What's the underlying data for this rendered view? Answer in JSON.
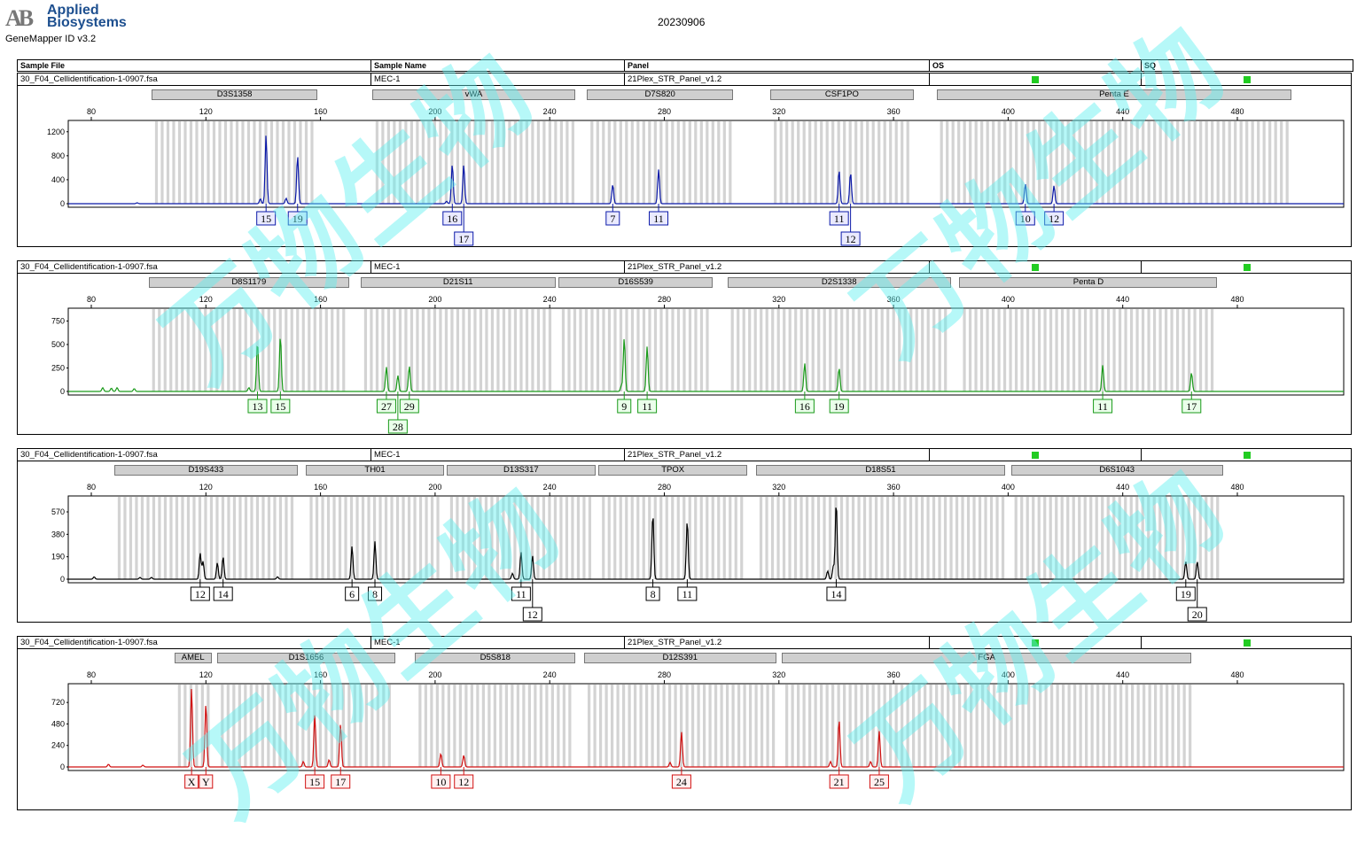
{
  "app": {
    "logo_mark": "AB",
    "company_line1": "Applied",
    "company_line2": "Biosystems",
    "version": "GeneMapper ID v3.2"
  },
  "run_date": "20230906",
  "table_header": {
    "sample_file": "Sample File",
    "sample_name": "Sample Name",
    "panel": "Panel",
    "os": "OS",
    "sq": "SQ"
  },
  "x_ticks": [
    80,
    120,
    160,
    200,
    240,
    280,
    320,
    360,
    400,
    440,
    480
  ],
  "colors": {
    "blue": "#0b19a8",
    "green": "#1a9a1a",
    "black": "#000000",
    "red": "#d11010",
    "status": "#22cc22"
  },
  "watermark": "万物生物",
  "panels": [
    {
      "sample_file": "30_F04_Cellidentification-1-0907.fsa",
      "sample_name": "MEC-1",
      "panel": "21Plex_STR_Panel_v1.2",
      "color": "#0b19a8",
      "label_fill": "#eaeaff",
      "y_ticks": [
        0,
        400,
        800,
        1200
      ],
      "ymax": 1300,
      "loci": [
        {
          "name": "D3S1358",
          "start": 101,
          "end": 159
        },
        {
          "name": "vWA",
          "start": 178,
          "end": 249
        },
        {
          "name": "D7S820",
          "start": 253,
          "end": 304
        },
        {
          "name": "CSF1PO",
          "start": 317,
          "end": 367
        },
        {
          "name": "Penta E",
          "start": 375,
          "end": 499
        }
      ],
      "peaks": [
        {
          "x": 141,
          "h": 1150,
          "allele": "15",
          "row": 0
        },
        {
          "x": 152,
          "h": 800,
          "allele": "19",
          "row": 0
        },
        {
          "x": 206,
          "h": 660,
          "allele": "16",
          "row": 0
        },
        {
          "x": 210,
          "h": 650,
          "allele": "17",
          "row": 1
        },
        {
          "x": 262,
          "h": 320,
          "allele": "7",
          "row": 0
        },
        {
          "x": 278,
          "h": 570,
          "allele": "11",
          "row": 0
        },
        {
          "x": 341,
          "h": 560,
          "allele": "11",
          "row": 0
        },
        {
          "x": 345,
          "h": 520,
          "allele": "12",
          "row": 1
        },
        {
          "x": 406,
          "h": 330,
          "allele": "10",
          "row": 0
        },
        {
          "x": 416,
          "h": 300,
          "allele": "12",
          "row": 0
        }
      ],
      "minor": [
        {
          "x": 139,
          "h": 80
        },
        {
          "x": 148,
          "h": 90
        },
        {
          "x": 204,
          "h": 40
        },
        {
          "x": 96,
          "h": 15
        }
      ]
    },
    {
      "sample_file": "30_F04_Cellidentification-1-0907.fsa",
      "sample_name": "MEC-1",
      "panel": "21Plex_STR_Panel_v1.2",
      "color": "#1a9a1a",
      "label_fill": "#eaffea",
      "y_ticks": [
        0,
        250,
        500,
        750
      ],
      "ymax": 830,
      "loci": [
        {
          "name": "D8S1179",
          "start": 100,
          "end": 170
        },
        {
          "name": "D21S11",
          "start": 174,
          "end": 242
        },
        {
          "name": "D16S539",
          "start": 243,
          "end": 297
        },
        {
          "name": "D2S1338",
          "start": 302,
          "end": 380
        },
        {
          "name": "Penta D",
          "start": 383,
          "end": 473
        }
      ],
      "peaks": [
        {
          "x": 138,
          "h": 530,
          "allele": "13",
          "row": 0
        },
        {
          "x": 146,
          "h": 590,
          "allele": "15",
          "row": 0
        },
        {
          "x": 183,
          "h": 260,
          "allele": "27",
          "row": 0
        },
        {
          "x": 187,
          "h": 170,
          "allele": "28",
          "row": 1
        },
        {
          "x": 191,
          "h": 270,
          "allele": "29",
          "row": 0
        },
        {
          "x": 266,
          "h": 570,
          "allele": "9",
          "row": 0
        },
        {
          "x": 274,
          "h": 480,
          "allele": "11",
          "row": 0
        },
        {
          "x": 329,
          "h": 300,
          "allele": "16",
          "row": 0
        },
        {
          "x": 341,
          "h": 250,
          "allele": "19",
          "row": 0
        },
        {
          "x": 433,
          "h": 280,
          "allele": "11",
          "row": 0
        },
        {
          "x": 464,
          "h": 200,
          "allele": "17",
          "row": 0
        }
      ],
      "minor": [
        {
          "x": 84,
          "h": 40
        },
        {
          "x": 87,
          "h": 35
        },
        {
          "x": 95,
          "h": 30
        },
        {
          "x": 135,
          "h": 40
        },
        {
          "x": 265,
          "h": 60
        },
        {
          "x": 89,
          "h": 40
        }
      ]
    },
    {
      "sample_file": "30_F04_Cellidentification-1-0907.fsa",
      "sample_name": "MEC-1",
      "panel": "21Plex_STR_Panel_v1.2",
      "color": "#000000",
      "label_fill": "#ffffff",
      "y_ticks": [
        0,
        190,
        380,
        570
      ],
      "ymax": 660,
      "loci": [
        {
          "name": "D19S433",
          "start": 88,
          "end": 152
        },
        {
          "name": "TH01",
          "start": 155,
          "end": 203
        },
        {
          "name": "D13S317",
          "start": 204,
          "end": 256
        },
        {
          "name": "TPOX",
          "start": 257,
          "end": 309
        },
        {
          "name": "D18S51",
          "start": 312,
          "end": 399
        },
        {
          "name": "D6S1043",
          "start": 401,
          "end": 475
        }
      ],
      "peaks": [
        {
          "x": 118,
          "h": 220,
          "allele": "12",
          "row": 0
        },
        {
          "x": 126,
          "h": 190,
          "allele": "14",
          "row": 0
        },
        {
          "x": 171,
          "h": 280,
          "allele": "6",
          "row": 0
        },
        {
          "x": 179,
          "h": 320,
          "allele": "8",
          "row": 0
        },
        {
          "x": 230,
          "h": 230,
          "allele": "11",
          "row": 0
        },
        {
          "x": 234,
          "h": 200,
          "allele": "12",
          "row": 1
        },
        {
          "x": 276,
          "h": 560,
          "allele": "8",
          "row": 0
        },
        {
          "x": 288,
          "h": 500,
          "allele": "11",
          "row": 0
        },
        {
          "x": 340,
          "h": 660,
          "allele": "14",
          "row": 0
        },
        {
          "x": 462,
          "h": 150,
          "allele": "19",
          "row": 0
        },
        {
          "x": 466,
          "h": 150,
          "allele": "20",
          "row": 1
        }
      ],
      "minor": [
        {
          "x": 81,
          "h": 20
        },
        {
          "x": 97,
          "h": 15
        },
        {
          "x": 119,
          "h": 150
        },
        {
          "x": 124,
          "h": 140
        },
        {
          "x": 227,
          "h": 50
        },
        {
          "x": 337,
          "h": 70
        },
        {
          "x": 339,
          "h": 110
        },
        {
          "x": 145,
          "h": 20
        },
        {
          "x": 101,
          "h": 15
        }
      ]
    },
    {
      "sample_file": "30_F04_Cellidentification-1-0907.fsa",
      "sample_name": "MEC-1",
      "panel": "21Plex_STR_Panel_v1.2",
      "color": "#d11010",
      "label_fill": "#fff0f0",
      "y_ticks": [
        0,
        240,
        480,
        720
      ],
      "ymax": 870,
      "loci": [
        {
          "name": "AMEL",
          "start": 109,
          "end": 122
        },
        {
          "name": "D1S1656",
          "start": 124,
          "end": 186
        },
        {
          "name": "D5S818",
          "start": 193,
          "end": 249
        },
        {
          "name": "D12S391",
          "start": 252,
          "end": 319
        },
        {
          "name": "FGA",
          "start": 321,
          "end": 464
        }
      ],
      "peaks": [
        {
          "x": 115,
          "h": 880,
          "allele": "X",
          "row": 0
        },
        {
          "x": 120,
          "h": 710,
          "allele": "Y",
          "row": 0
        },
        {
          "x": 158,
          "h": 580,
          "allele": "15",
          "row": 0
        },
        {
          "x": 167,
          "h": 480,
          "allele": "17",
          "row": 0
        },
        {
          "x": 202,
          "h": 150,
          "allele": "10",
          "row": 0
        },
        {
          "x": 210,
          "h": 130,
          "allele": "12",
          "row": 0
        },
        {
          "x": 286,
          "h": 390,
          "allele": "24",
          "row": 0
        },
        {
          "x": 341,
          "h": 530,
          "allele": "21",
          "row": 0
        },
        {
          "x": 355,
          "h": 400,
          "allele": "25",
          "row": 0
        }
      ],
      "minor": [
        {
          "x": 86,
          "h": 30
        },
        {
          "x": 98,
          "h": 20
        },
        {
          "x": 154,
          "h": 60
        },
        {
          "x": 163,
          "h": 80
        },
        {
          "x": 282,
          "h": 50
        },
        {
          "x": 338,
          "h": 60
        },
        {
          "x": 352,
          "h": 60
        }
      ]
    }
  ]
}
